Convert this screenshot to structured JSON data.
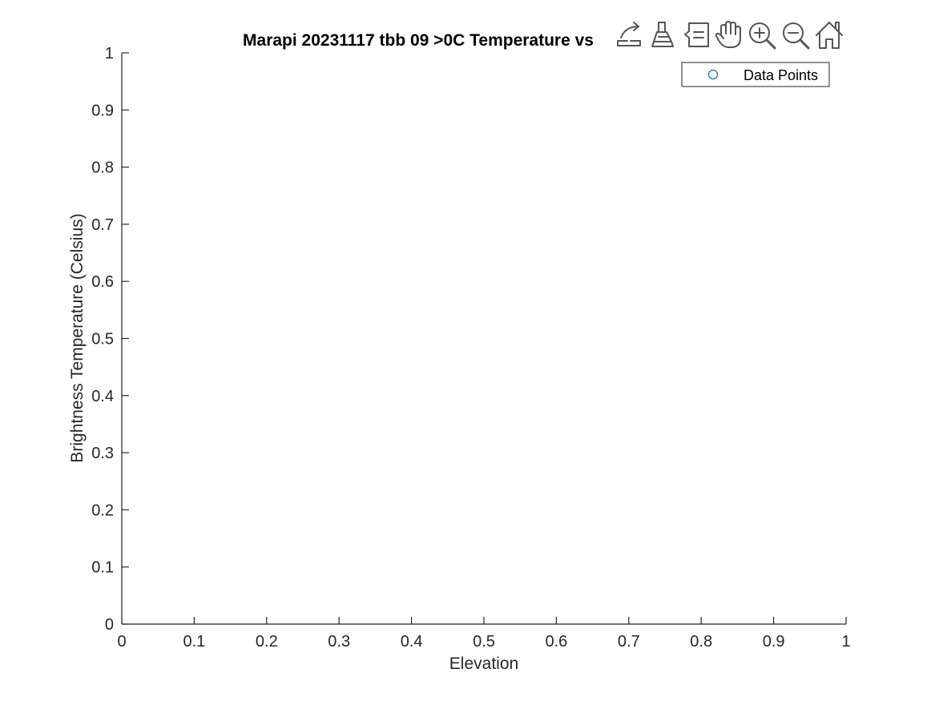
{
  "chart_data": {
    "type": "scatter",
    "title": "Marapi 20231117 tbb 09 >0C Temperature vs",
    "xlabel": "Elevation",
    "ylabel": "Brightness Temperature (Celsius)",
    "xlim": [
      0,
      1
    ],
    "ylim": [
      0,
      1
    ],
    "xticks": [
      "0",
      "0.1",
      "0.2",
      "0.3",
      "0.4",
      "0.5",
      "0.6",
      "0.7",
      "0.8",
      "0.9",
      "1"
    ],
    "yticks": [
      "0",
      "0.1",
      "0.2",
      "0.3",
      "0.4",
      "0.5",
      "0.6",
      "0.7",
      "0.8",
      "0.9",
      "1"
    ],
    "grid": false,
    "legend_position": "top-right",
    "series": [
      {
        "name": "Data Points",
        "marker": "circle",
        "color": "#0072BD",
        "x": [],
        "y": []
      }
    ]
  },
  "toolbar": {
    "icons": [
      "export-icon",
      "brush-icon",
      "datatip-icon",
      "pan-icon",
      "zoom-in-icon",
      "zoom-out-icon",
      "home-icon"
    ]
  },
  "colors": {
    "axis": "#262626",
    "series_color": "#0072BD",
    "toolbar_icon": "#555555"
  }
}
